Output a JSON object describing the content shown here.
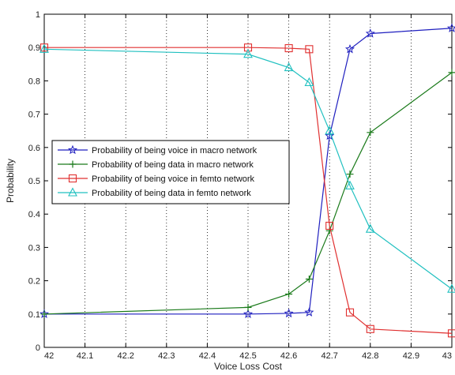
{
  "chart_data": {
    "type": "line",
    "title": "",
    "xlabel": "Voice Loss Cost",
    "ylabel": "Probability",
    "xlim": [
      42,
      43
    ],
    "ylim": [
      0,
      1
    ],
    "x_ticks": [
      "42",
      "42.1",
      "42.2",
      "42.3",
      "42.4",
      "42.5",
      "42.6",
      "42.7",
      "42.8",
      "42.9",
      "43"
    ],
    "y_ticks": [
      "0",
      "0.1",
      "0.2",
      "0.3",
      "0.4",
      "0.5",
      "0.6",
      "0.7",
      "0.8",
      "0.9",
      "1"
    ],
    "grid": "vertical dotted",
    "legend_position": "middle-left",
    "x": [
      42,
      42.5,
      42.6,
      42.65,
      42.7,
      42.75,
      42.8,
      43
    ],
    "series": [
      {
        "name": "Probability of being voice in macro network",
        "color": "#1f1fbf",
        "marker": "star",
        "values": [
          0.1,
          0.1,
          0.102,
          0.105,
          0.635,
          0.895,
          0.942,
          0.958
        ]
      },
      {
        "name": "Probability of being data in macro network",
        "color": "#1a7a1a",
        "marker": "plus",
        "values": [
          0.1,
          0.12,
          0.16,
          0.205,
          0.35,
          0.52,
          0.645,
          0.825
        ]
      },
      {
        "name": "Probability of being voice in femto network",
        "color": "#e03030",
        "marker": "square",
        "values": [
          0.9,
          0.9,
          0.898,
          0.895,
          0.365,
          0.105,
          0.055,
          0.042
        ]
      },
      {
        "name": "Probability of being data in femto network",
        "color": "#20c0c0",
        "marker": "triangle",
        "values": [
          0.895,
          0.88,
          0.84,
          0.795,
          0.65,
          0.485,
          0.355,
          0.175
        ]
      }
    ]
  }
}
